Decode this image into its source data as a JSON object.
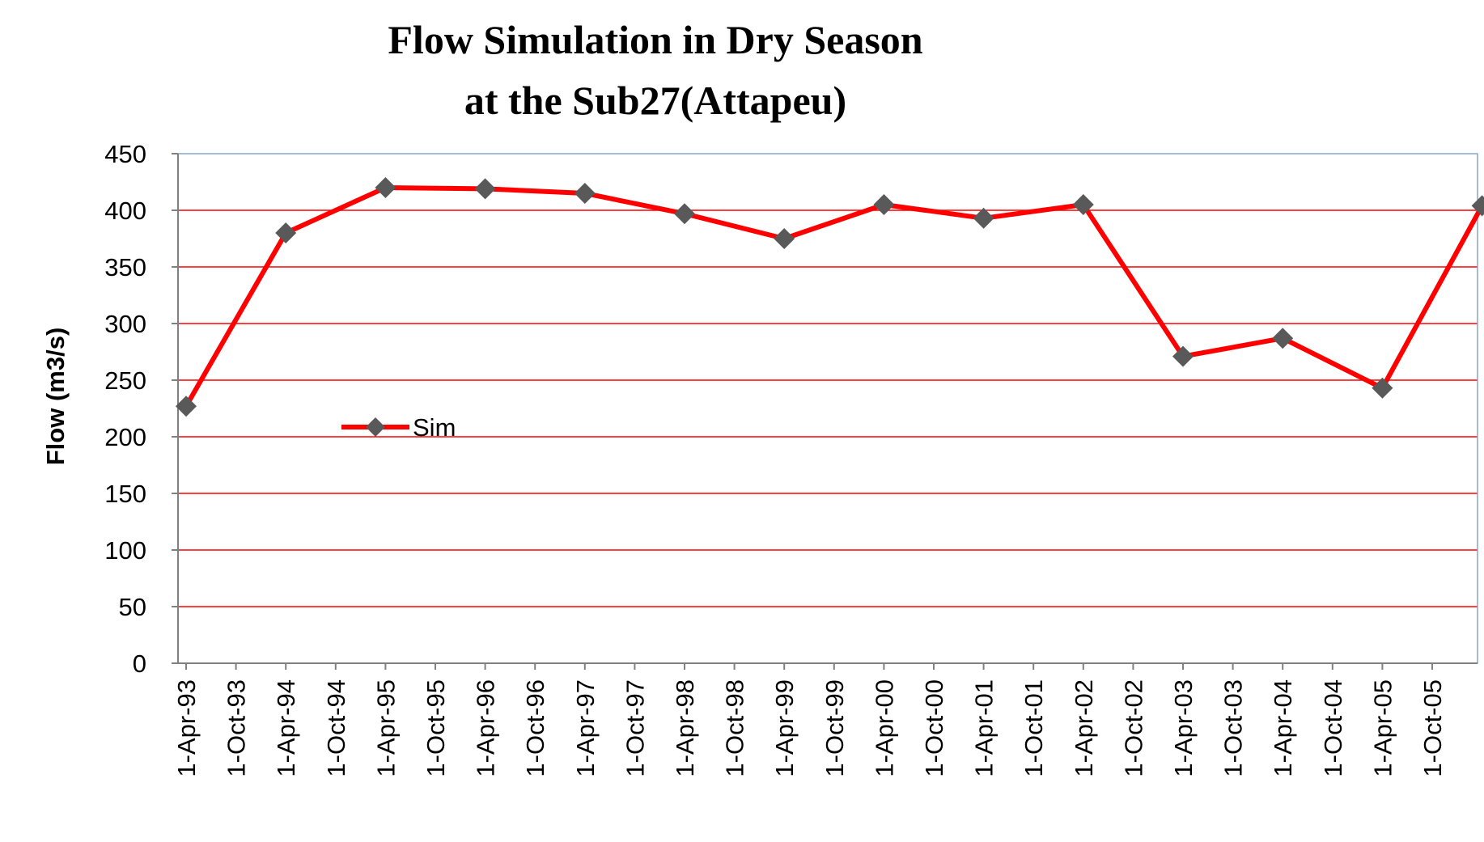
{
  "chart_data": {
    "type": "line",
    "title": [
      "Flow Simulation in Dry  Season",
      "at the  Sub27(Attapeu)"
    ],
    "ylabel": "Flow (m3/s)",
    "xlabel": "",
    "ylim": [
      0,
      450
    ],
    "yticks": [
      "0",
      "50",
      "100",
      "150",
      "200",
      "250",
      "300",
      "350",
      "400",
      "450"
    ],
    "xticks": [
      "1-Apr-93",
      "1-Oct-93",
      "1-Apr-94",
      "1-Oct-94",
      "1-Apr-95",
      "1-Oct-95",
      "1-Apr-96",
      "1-Oct-96",
      "1-Apr-97",
      "1-Oct-97",
      "1-Apr-98",
      "1-Oct-98",
      "1-Apr-99",
      "1-Oct-99",
      "1-Apr-00",
      "1-Oct-00",
      "1-Apr-01",
      "1-Oct-01",
      "1-Apr-02",
      "1-Oct-02",
      "1-Apr-03",
      "1-Oct-03",
      "1-Apr-04",
      "1-Oct-04",
      "1-Apr-05",
      "1-Oct-05"
    ],
    "grid": "horizontal",
    "legend_position": "center-left",
    "series": [
      {
        "name": "Sim",
        "color": "#ff0000",
        "marker": "diamond",
        "marker_color": "#595959",
        "x": [
          "1-Apr-93",
          "1-Apr-94",
          "1-Apr-95",
          "1-Apr-96",
          "1-Apr-97",
          "1-Apr-98",
          "1-Apr-99",
          "1-Apr-00",
          "1-Apr-01",
          "1-Apr-02",
          "1-Apr-03",
          "1-Apr-04",
          "1-Apr-05",
          "1-Apr-06"
        ],
        "values": [
          227,
          380,
          420,
          419,
          415,
          397,
          375,
          405,
          393,
          405,
          271,
          287,
          243,
          404
        ]
      }
    ]
  },
  "colors": {
    "gridline": "#ff0000",
    "plot_border": "#8aa4c8",
    "axis": "#808080"
  }
}
